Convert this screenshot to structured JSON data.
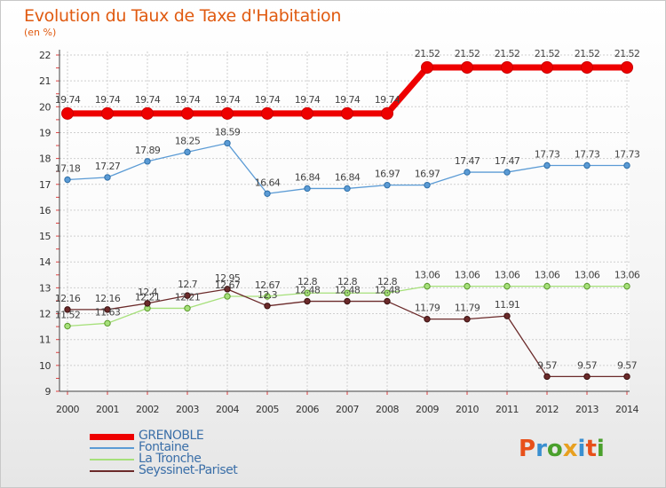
{
  "title": "Evolution du Taux de Taxe d'Habitation",
  "subtitle": "(en %)",
  "logo": {
    "letters": [
      "P",
      "r",
      "o",
      "x",
      "i",
      "t",
      "i"
    ],
    "colors": [
      "#e8501a",
      "#3a8fd0",
      "#4aa02c",
      "#e8a020",
      "#3a8fd0",
      "#e8501a",
      "#4aa02c"
    ]
  },
  "chart_data": {
    "type": "line",
    "x": [
      "2000",
      "2001",
      "2002",
      "2003",
      "2004",
      "2005",
      "2006",
      "2007",
      "2008",
      "2009",
      "2010",
      "2011",
      "2012",
      "2013",
      "2014"
    ],
    "ylim": [
      9,
      22
    ],
    "yticks": [
      "9",
      "10",
      "11",
      "12",
      "13",
      "14",
      "15",
      "16",
      "17",
      "18",
      "19",
      "20",
      "21",
      "22"
    ],
    "grid": true,
    "legend_position": "bottom-left",
    "series": [
      {
        "name": "GRENOBLE",
        "color": "#ee0000",
        "values": [
          19.74,
          19.74,
          19.74,
          19.74,
          19.74,
          19.74,
          19.74,
          19.74,
          19.74,
          21.52,
          21.52,
          21.52,
          21.52,
          21.52,
          21.52
        ],
        "labels": [
          "19.74",
          "19.74",
          "19.74",
          "19.74",
          "19.74",
          "19.74",
          "19.74",
          "19.74",
          "19.74",
          "21.52",
          "21.52",
          "21.52",
          "21.52",
          "21.52",
          "21.52"
        ]
      },
      {
        "name": "Fontaine",
        "color": "#5b9bd5",
        "values": [
          17.18,
          17.27,
          17.89,
          18.25,
          18.59,
          16.64,
          16.84,
          16.84,
          16.97,
          16.97,
          17.47,
          17.47,
          17.73,
          17.73,
          17.73
        ],
        "labels": [
          "17.18",
          "17.27",
          "17.89",
          "18.25",
          "18.59",
          "16.64",
          "16.84",
          "16.84",
          "16.97",
          "16.97",
          "17.47",
          "17.47",
          "17.73",
          "17.73",
          "17.73"
        ]
      },
      {
        "name": "La Tronche",
        "color": "#a6e07a",
        "values": [
          11.52,
          11.63,
          12.21,
          12.21,
          12.67,
          12.67,
          12.8,
          12.8,
          12.8,
          13.06,
          13.06,
          13.06,
          13.06,
          13.06,
          13.06
        ],
        "labels": [
          "11.52",
          "11.63",
          "12.21",
          "12.21",
          "12.67",
          "12.67",
          "12.8",
          "12.8",
          "12.8",
          "13.06",
          "13.06",
          "13.06",
          "13.06",
          "13.06",
          "13.06"
        ]
      },
      {
        "name": "Seyssinet-Pariset",
        "color": "#6b2a2a",
        "values": [
          12.16,
          12.16,
          12.4,
          12.7,
          12.95,
          12.3,
          12.48,
          12.48,
          12.48,
          11.79,
          11.79,
          11.91,
          9.57,
          9.57,
          9.57
        ],
        "labels": [
          "12.16",
          "12.16",
          "12.4",
          "12.7",
          "12.95",
          "12.3",
          "12.48",
          "12.48",
          "12.48",
          "11.79",
          "11.79",
          "11.91",
          "9.57",
          "9.57",
          "9.57"
        ]
      }
    ]
  }
}
